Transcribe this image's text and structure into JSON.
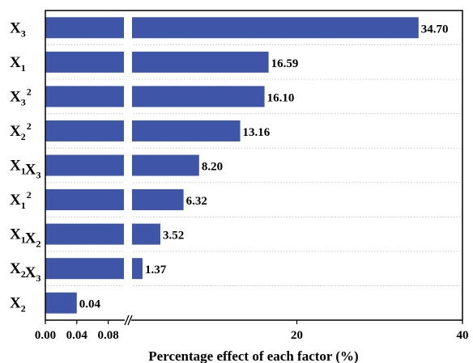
{
  "chart_data": {
    "type": "bar",
    "orientation": "horizontal",
    "xlabel": "Percentage effect of each factor (%)",
    "x_axis_break": true,
    "xlim_left_segment": [
      0.0,
      0.1
    ],
    "xlim_right_segment": [
      0.1,
      40
    ],
    "xticks": [
      "0.00",
      "0.04",
      "0.08",
      "20",
      "40"
    ],
    "grid": "horizontal dotted",
    "bar_color": "#3F56A8",
    "categories": [
      {
        "base": "X",
        "sub": "3",
        "sup": "",
        "rest": []
      },
      {
        "base": "X",
        "sub": "1",
        "sup": "",
        "rest": []
      },
      {
        "base": "X",
        "sub": "3",
        "sup": "2",
        "rest": []
      },
      {
        "base": "X",
        "sub": "2",
        "sup": "2",
        "rest": []
      },
      {
        "base": "X",
        "sub": "1",
        "sup": "",
        "rest": [
          {
            "base": "X",
            "sub": "3"
          }
        ]
      },
      {
        "base": "X",
        "sub": "1",
        "sup": "2",
        "rest": []
      },
      {
        "base": "X",
        "sub": "1",
        "sup": "",
        "rest": [
          {
            "base": "X",
            "sub": "2"
          }
        ]
      },
      {
        "base": "X",
        "sub": "2",
        "sup": "",
        "rest": [
          {
            "base": "X",
            "sub": "3"
          }
        ]
      },
      {
        "base": "X",
        "sub": "2",
        "sup": "",
        "rest": []
      }
    ],
    "values": [
      34.7,
      16.59,
      16.1,
      13.16,
      8.2,
      6.32,
      3.52,
      1.37,
      0.04
    ],
    "value_labels": [
      "34.70",
      "16.59",
      "16.10",
      "13.16",
      "8.20",
      "6.32",
      "3.52",
      "1.37",
      "0.04"
    ]
  }
}
